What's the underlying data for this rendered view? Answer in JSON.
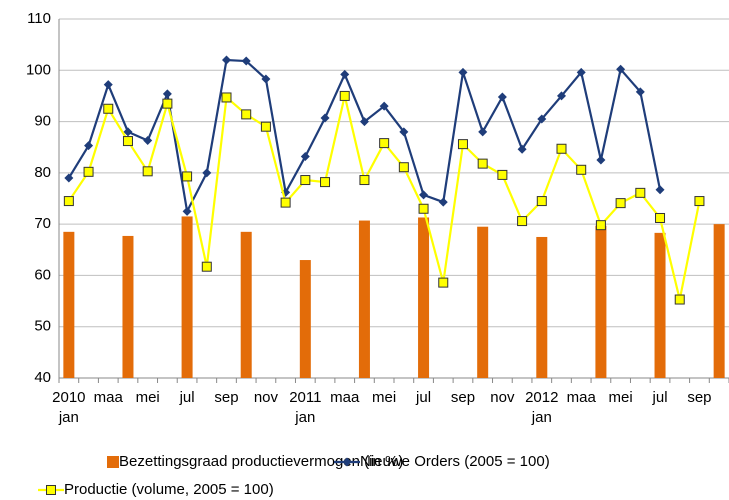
{
  "chart_data": {
    "type": "bar_line",
    "categories": [
      "jan",
      null,
      "maa",
      null,
      "mei",
      null,
      "jul",
      null,
      "sep",
      null,
      "nov",
      null,
      "jan",
      null,
      "maa",
      null,
      "mei",
      null,
      "jul",
      null,
      "sep",
      null,
      "nov",
      null,
      "jan",
      null,
      "maa",
      null,
      "mei",
      null,
      "jul",
      null,
      "sep",
      null
    ],
    "years": [
      "2010",
      null,
      null,
      null,
      null,
      null,
      null,
      null,
      null,
      null,
      null,
      null,
      "2011",
      null,
      null,
      null,
      null,
      null,
      null,
      null,
      null,
      null,
      null,
      null,
      "2012",
      null,
      null,
      null,
      null,
      null,
      null,
      null,
      null,
      null
    ],
    "series": [
      {
        "name": "Bezettingsgraad productievermogen (in %)",
        "type": "bar",
        "color": "#e36c09",
        "values": [
          68.5,
          null,
          null,
          67.7,
          null,
          null,
          71.5,
          null,
          null,
          68.5,
          null,
          null,
          63,
          null,
          null,
          70.7,
          null,
          null,
          71.3,
          null,
          null,
          69.5,
          null,
          null,
          67.5,
          null,
          null,
          69.7,
          null,
          null,
          68.3,
          null,
          null,
          70
        ]
      },
      {
        "name": "Nieuwe Orders (2005 = 100)",
        "type": "line",
        "marker": "diamond",
        "color": "#1f3d7a",
        "values": [
          79,
          85.3,
          97.2,
          88,
          86.3,
          95.4,
          72.5,
          80,
          102,
          101.8,
          98.3,
          76.2,
          83.2,
          90.7,
          99.2,
          90,
          93,
          88,
          75.7,
          74.3,
          99.6,
          88,
          94.8,
          84.6,
          90.5,
          95,
          99.6,
          82.5,
          100.2,
          95.8,
          76.7,
          null,
          null,
          null
        ]
      },
      {
        "name": "Productie (volume, 2005 = 100)",
        "type": "line",
        "marker": "square",
        "color": "#ffff00",
        "values": [
          74.5,
          80.2,
          92.5,
          86.2,
          80.3,
          93.5,
          79.3,
          61.7,
          94.7,
          91.4,
          89,
          74.2,
          78.6,
          78.2,
          95,
          78.6,
          85.8,
          81.1,
          73,
          58.6,
          85.6,
          81.8,
          79.6,
          70.6,
          74.5,
          84.7,
          80.6,
          69.8,
          74.1,
          76.1,
          71.2,
          55.3,
          74.5,
          null
        ]
      }
    ],
    "ylim": [
      40,
      110
    ],
    "yticks": [
      40,
      50,
      60,
      70,
      80,
      90,
      100,
      110
    ],
    "grid": true,
    "legend": "bottom"
  }
}
